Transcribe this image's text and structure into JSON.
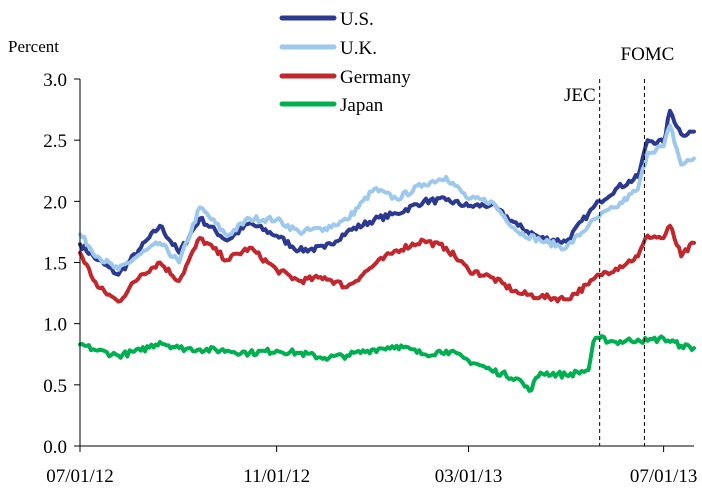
{
  "chart_data": {
    "type": "line",
    "title": "",
    "ylabel": "Percent",
    "xlabel": "",
    "ylim": [
      0,
      3
    ],
    "yticks": [
      "0.0",
      "0.5",
      "1.0",
      "1.5",
      "2.0",
      "2.5",
      "3.0"
    ],
    "xlim": [
      "2012-07-01",
      "2013-07-20"
    ],
    "xticks": [
      {
        "date": "2012-07-01",
        "label": "07/01/12"
      },
      {
        "date": "2012-11-01",
        "label": "11/01/12"
      },
      {
        "date": "2013-03-01",
        "label": "03/01/13"
      },
      {
        "date": "2013-07-01",
        "label": "07/01/13"
      }
    ],
    "grid": false,
    "legend_position": "top-center",
    "annotations": [
      {
        "label": "JEC",
        "date": "2013-05-22",
        "style": "dashed-vertical-line"
      },
      {
        "label": "FOMC",
        "date": "2013-06-19",
        "style": "dashed-vertical-line"
      }
    ],
    "series": [
      {
        "name": "U.S.",
        "color": "#2b3990",
        "points": [
          [
            "2012-07-01",
            1.65
          ],
          [
            "2012-07-12",
            1.52
          ],
          [
            "2012-07-25",
            1.4
          ],
          [
            "2012-08-08",
            1.62
          ],
          [
            "2012-08-20",
            1.8
          ],
          [
            "2012-09-01",
            1.58
          ],
          [
            "2012-09-14",
            1.86
          ],
          [
            "2012-10-01",
            1.68
          ],
          [
            "2012-10-15",
            1.82
          ],
          [
            "2012-11-01",
            1.72
          ],
          [
            "2012-11-15",
            1.6
          ],
          [
            "2012-12-01",
            1.62
          ],
          [
            "2012-12-15",
            1.75
          ],
          [
            "2013-01-01",
            1.85
          ],
          [
            "2013-01-15",
            1.9
          ],
          [
            "2013-02-01",
            2.0
          ],
          [
            "2013-02-15",
            2.01
          ],
          [
            "2013-03-01",
            1.96
          ],
          [
            "2013-03-15",
            1.97
          ],
          [
            "2013-04-01",
            1.8
          ],
          [
            "2013-04-15",
            1.7
          ],
          [
            "2013-05-01",
            1.67
          ],
          [
            "2013-05-15",
            1.9
          ],
          [
            "2013-05-22",
            2.0
          ],
          [
            "2013-06-01",
            2.1
          ],
          [
            "2013-06-15",
            2.2
          ],
          [
            "2013-06-21",
            2.5
          ],
          [
            "2013-07-01",
            2.48
          ],
          [
            "2013-07-05",
            2.74
          ],
          [
            "2013-07-12",
            2.55
          ],
          [
            "2013-07-20",
            2.57
          ]
        ]
      },
      {
        "name": "U.K.",
        "color": "#9ec9ec",
        "points": [
          [
            "2012-07-01",
            1.73
          ],
          [
            "2012-07-12",
            1.55
          ],
          [
            "2012-07-25",
            1.44
          ],
          [
            "2012-08-08",
            1.57
          ],
          [
            "2012-08-20",
            1.66
          ],
          [
            "2012-09-01",
            1.5
          ],
          [
            "2012-09-14",
            1.95
          ],
          [
            "2012-10-01",
            1.72
          ],
          [
            "2012-10-15",
            1.86
          ],
          [
            "2012-11-01",
            1.85
          ],
          [
            "2012-11-15",
            1.75
          ],
          [
            "2012-12-01",
            1.78
          ],
          [
            "2012-12-15",
            1.85
          ],
          [
            "2013-01-01",
            2.1
          ],
          [
            "2013-01-15",
            2.02
          ],
          [
            "2013-02-01",
            2.14
          ],
          [
            "2013-02-15",
            2.2
          ],
          [
            "2013-03-01",
            2.02
          ],
          [
            "2013-03-15",
            2.0
          ],
          [
            "2013-04-01",
            1.75
          ],
          [
            "2013-04-15",
            1.68
          ],
          [
            "2013-05-01",
            1.62
          ],
          [
            "2013-05-15",
            1.8
          ],
          [
            "2013-05-22",
            1.88
          ],
          [
            "2013-06-01",
            1.95
          ],
          [
            "2013-06-15",
            2.1
          ],
          [
            "2013-06-21",
            2.4
          ],
          [
            "2013-07-01",
            2.45
          ],
          [
            "2013-07-05",
            2.62
          ],
          [
            "2013-07-12",
            2.3
          ],
          [
            "2013-07-20",
            2.35
          ]
        ]
      },
      {
        "name": "Germany",
        "color": "#c1272d",
        "points": [
          [
            "2012-07-01",
            1.58
          ],
          [
            "2012-07-12",
            1.3
          ],
          [
            "2012-07-25",
            1.18
          ],
          [
            "2012-08-08",
            1.4
          ],
          [
            "2012-08-20",
            1.5
          ],
          [
            "2012-09-01",
            1.35
          ],
          [
            "2012-09-14",
            1.7
          ],
          [
            "2012-10-01",
            1.52
          ],
          [
            "2012-10-15",
            1.62
          ],
          [
            "2012-11-01",
            1.44
          ],
          [
            "2012-11-15",
            1.35
          ],
          [
            "2012-12-01",
            1.38
          ],
          [
            "2012-12-15",
            1.3
          ],
          [
            "2013-01-01",
            1.48
          ],
          [
            "2013-01-15",
            1.6
          ],
          [
            "2013-02-01",
            1.68
          ],
          [
            "2013-02-15",
            1.62
          ],
          [
            "2013-03-01",
            1.44
          ],
          [
            "2013-03-15",
            1.38
          ],
          [
            "2013-04-01",
            1.25
          ],
          [
            "2013-04-15",
            1.22
          ],
          [
            "2013-05-01",
            1.2
          ],
          [
            "2013-05-15",
            1.32
          ],
          [
            "2013-05-22",
            1.4
          ],
          [
            "2013-06-01",
            1.45
          ],
          [
            "2013-06-15",
            1.55
          ],
          [
            "2013-06-21",
            1.72
          ],
          [
            "2013-07-01",
            1.7
          ],
          [
            "2013-07-05",
            1.8
          ],
          [
            "2013-07-12",
            1.55
          ],
          [
            "2013-07-20",
            1.66
          ]
        ]
      },
      {
        "name": "Japan",
        "color": "#00b050",
        "points": [
          [
            "2012-07-01",
            0.83
          ],
          [
            "2012-07-12",
            0.78
          ],
          [
            "2012-07-25",
            0.74
          ],
          [
            "2012-08-08",
            0.78
          ],
          [
            "2012-08-20",
            0.85
          ],
          [
            "2012-09-01",
            0.8
          ],
          [
            "2012-09-14",
            0.79
          ],
          [
            "2012-10-01",
            0.78
          ],
          [
            "2012-10-15",
            0.76
          ],
          [
            "2012-11-01",
            0.78
          ],
          [
            "2012-11-15",
            0.76
          ],
          [
            "2012-12-01",
            0.72
          ],
          [
            "2012-12-15",
            0.74
          ],
          [
            "2013-01-01",
            0.79
          ],
          [
            "2013-01-15",
            0.82
          ],
          [
            "2013-02-01",
            0.75
          ],
          [
            "2013-02-15",
            0.78
          ],
          [
            "2013-03-01",
            0.7
          ],
          [
            "2013-03-15",
            0.62
          ],
          [
            "2013-04-01",
            0.55
          ],
          [
            "2013-04-08",
            0.45
          ],
          [
            "2013-04-15",
            0.6
          ],
          [
            "2013-05-01",
            0.58
          ],
          [
            "2013-05-15",
            0.62
          ],
          [
            "2013-05-18",
            0.85
          ],
          [
            "2013-05-22",
            0.88
          ],
          [
            "2013-06-01",
            0.85
          ],
          [
            "2013-06-15",
            0.87
          ],
          [
            "2013-06-21",
            0.86
          ],
          [
            "2013-07-01",
            0.88
          ],
          [
            "2013-07-12",
            0.82
          ],
          [
            "2013-07-20",
            0.8
          ]
        ]
      }
    ]
  }
}
